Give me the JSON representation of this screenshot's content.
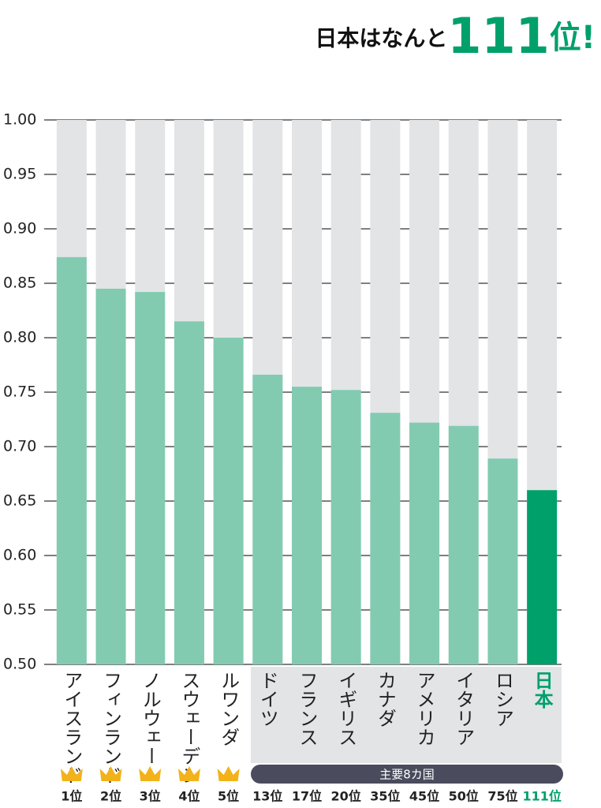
{
  "chart_data": {
    "type": "bar",
    "title_parts": [
      "日本はなんと",
      "111",
      "位",
      "!"
    ],
    "categories": [
      "アイスランド",
      "フィンランド",
      "ノルウェー",
      "スウェーデン",
      "ルワンダ",
      "ドイツ",
      "フランス",
      "イギリス",
      "カナダ",
      "アメリカ",
      "イタリア",
      "ロシア",
      "日本"
    ],
    "values": [
      0.874,
      0.845,
      0.842,
      0.815,
      0.8,
      0.766,
      0.755,
      0.752,
      0.731,
      0.722,
      0.719,
      0.689,
      0.66
    ],
    "ranks": [
      "1位",
      "2位",
      "3位",
      "4位",
      "5位",
      "13位",
      "17位",
      "20位",
      "35位",
      "45位",
      "50位",
      "75位",
      "111位"
    ],
    "group_label": "主要8カ国",
    "color": "#82cbb1",
    "highlight_color": "#00a06b",
    "ylim": [
      0.5,
      1.0
    ],
    "yticks": [
      {
        "value": 0.5,
        "label": "0.50"
      },
      0.55,
      {
        "value": 0.6,
        "label": "0.60"
      },
      0.65,
      {
        "value": 0.7,
        "label": "0.70"
      },
      0.75,
      {
        "value": 0.8,
        "label": "0.80"
      },
      0.85,
      {
        "value": 0.9,
        "label": "0.90"
      },
      0.95,
      {
        "value": 1.0,
        "label": "1.00"
      }
    ],
    "grid": true
  }
}
